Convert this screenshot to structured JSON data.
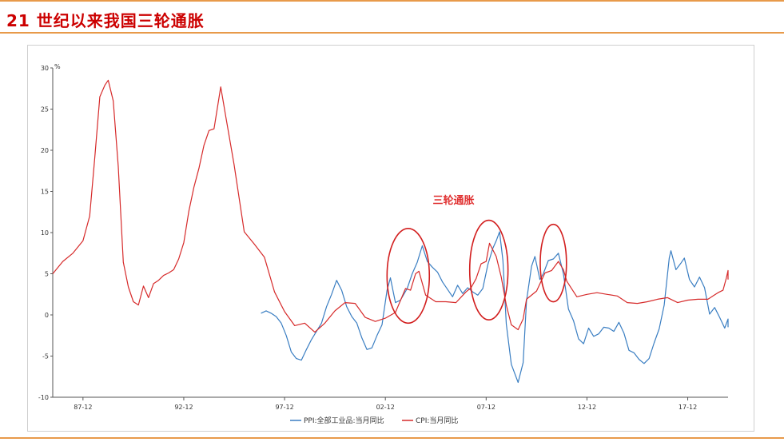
{
  "page": {
    "title": "21 世纪以来我国三轮通胀"
  },
  "colors": {
    "title": "#cc0000",
    "rule": "#e89a4a",
    "ppi": "#3a7ec2",
    "cpi": "#d62a2a",
    "ellipse": "#d21e1e"
  },
  "chart_data": {
    "type": "line",
    "title": "",
    "xlabel": "",
    "ylabel": "%",
    "ylim": [
      -10,
      30
    ],
    "yticks": [
      -10,
      -5,
      0,
      5,
      10,
      15,
      20,
      25,
      30
    ],
    "x_start": "1986-06",
    "x_end": "2019-12",
    "xticks": [
      "87-12",
      "92-12",
      "97-12",
      "02-12",
      "07-12",
      "12-12",
      "17-12"
    ],
    "legend_position": "bottom",
    "grid": false,
    "annotation": {
      "text": "三轮通胀",
      "periods": [
        "2003-2004",
        "2007-2008",
        "2010-2011"
      ]
    },
    "series": [
      {
        "name": "PPI:全部工业品:当月同比",
        "points": [
          [
            "1996-10",
            0.2
          ],
          [
            "1997-01",
            0.5
          ],
          [
            "1997-04",
            0.2
          ],
          [
            "1997-07",
            -0.2
          ],
          [
            "1997-10",
            -1.0
          ],
          [
            "1998-01",
            -2.5
          ],
          [
            "1998-04",
            -4.5
          ],
          [
            "1998-07",
            -5.3
          ],
          [
            "1998-10",
            -5.5
          ],
          [
            "1999-01",
            -4.2
          ],
          [
            "1999-04",
            -3.0
          ],
          [
            "1999-07",
            -2.0
          ],
          [
            "1999-10",
            -1.0
          ],
          [
            "2000-01",
            1.0
          ],
          [
            "2000-04",
            2.5
          ],
          [
            "2000-07",
            4.2
          ],
          [
            "2000-10",
            3.0
          ],
          [
            "2001-01",
            1.0
          ],
          [
            "2001-04",
            -0.2
          ],
          [
            "2001-07",
            -1.0
          ],
          [
            "2001-10",
            -2.8
          ],
          [
            "2002-01",
            -4.2
          ],
          [
            "2002-04",
            -4.0
          ],
          [
            "2002-07",
            -2.5
          ],
          [
            "2002-10",
            -1.2
          ],
          [
            "2003-01",
            3.0
          ],
          [
            "2003-03",
            4.5
          ],
          [
            "2003-06",
            1.5
          ],
          [
            "2003-09",
            1.8
          ],
          [
            "2004-01",
            3.2
          ],
          [
            "2004-04",
            5.0
          ],
          [
            "2004-07",
            6.4
          ],
          [
            "2004-10",
            8.4
          ],
          [
            "2005-01",
            6.5
          ],
          [
            "2005-04",
            5.8
          ],
          [
            "2005-07",
            5.2
          ],
          [
            "2005-10",
            4.0
          ],
          [
            "2006-01",
            3.1
          ],
          [
            "2006-04",
            2.2
          ],
          [
            "2006-07",
            3.6
          ],
          [
            "2006-10",
            2.6
          ],
          [
            "2007-01",
            3.3
          ],
          [
            "2007-04",
            2.8
          ],
          [
            "2007-07",
            2.4
          ],
          [
            "2007-10",
            3.2
          ],
          [
            "2008-01",
            6.1
          ],
          [
            "2008-04",
            8.1
          ],
          [
            "2008-06",
            9.0
          ],
          [
            "2008-08",
            10.1
          ],
          [
            "2008-10",
            6.6
          ],
          [
            "2008-12",
            -1.1
          ],
          [
            "2009-03",
            -6.0
          ],
          [
            "2009-07",
            -8.2
          ],
          [
            "2009-10",
            -5.8
          ],
          [
            "2009-12",
            1.7
          ],
          [
            "2010-03",
            5.9
          ],
          [
            "2010-05",
            7.1
          ],
          [
            "2010-08",
            4.3
          ],
          [
            "2010-10",
            5.0
          ],
          [
            "2011-01",
            6.6
          ],
          [
            "2011-04",
            6.8
          ],
          [
            "2011-07",
            7.5
          ],
          [
            "2011-10",
            5.0
          ],
          [
            "2012-01",
            0.7
          ],
          [
            "2012-04",
            -0.7
          ],
          [
            "2012-07",
            -2.9
          ],
          [
            "2012-10",
            -3.5
          ],
          [
            "2013-01",
            -1.6
          ],
          [
            "2013-04",
            -2.6
          ],
          [
            "2013-07",
            -2.3
          ],
          [
            "2013-10",
            -1.5
          ],
          [
            "2014-01",
            -1.6
          ],
          [
            "2014-04",
            -2.0
          ],
          [
            "2014-07",
            -0.9
          ],
          [
            "2014-10",
            -2.2
          ],
          [
            "2015-01",
            -4.3
          ],
          [
            "2015-04",
            -4.6
          ],
          [
            "2015-07",
            -5.4
          ],
          [
            "2015-10",
            -5.9
          ],
          [
            "2016-01",
            -5.3
          ],
          [
            "2016-04",
            -3.4
          ],
          [
            "2016-07",
            -1.7
          ],
          [
            "2016-10",
            1.2
          ],
          [
            "2017-01",
            6.9
          ],
          [
            "2017-02",
            7.8
          ],
          [
            "2017-05",
            5.5
          ],
          [
            "2017-08",
            6.3
          ],
          [
            "2017-10",
            6.9
          ],
          [
            "2018-01",
            4.3
          ],
          [
            "2018-04",
            3.4
          ],
          [
            "2018-07",
            4.6
          ],
          [
            "2018-10",
            3.3
          ],
          [
            "2019-01",
            0.1
          ],
          [
            "2019-04",
            0.9
          ],
          [
            "2019-07",
            -0.3
          ],
          [
            "2019-10",
            -1.6
          ],
          [
            "2019-12",
            -0.5
          ],
          [
            "2019-12",
            -1.5
          ]
        ]
      },
      {
        "name": "CPI:当月同比",
        "points": [
          [
            "1986-06",
            5.0
          ],
          [
            "1986-12",
            6.5
          ],
          [
            "1987-06",
            7.5
          ],
          [
            "1987-12",
            9.0
          ],
          [
            "1988-04",
            12.0
          ],
          [
            "1988-07",
            19.0
          ],
          [
            "1988-10",
            26.5
          ],
          [
            "1989-01",
            27.9
          ],
          [
            "1989-03",
            28.5
          ],
          [
            "1989-06",
            26.0
          ],
          [
            "1989-09",
            18.0
          ],
          [
            "1989-12",
            6.4
          ],
          [
            "1990-03",
            3.4
          ],
          [
            "1990-06",
            1.6
          ],
          [
            "1990-09",
            1.2
          ],
          [
            "1990-12",
            3.5
          ],
          [
            "1991-03",
            2.1
          ],
          [
            "1991-06",
            3.8
          ],
          [
            "1991-09",
            4.2
          ],
          [
            "1991-12",
            4.8
          ],
          [
            "1992-03",
            5.1
          ],
          [
            "1992-06",
            5.5
          ],
          [
            "1992-09",
            6.8
          ],
          [
            "1992-12",
            8.8
          ],
          [
            "1993-03",
            12.6
          ],
          [
            "1993-06",
            15.5
          ],
          [
            "1993-09",
            17.8
          ],
          [
            "1993-12",
            20.6
          ],
          [
            "1994-03",
            22.4
          ],
          [
            "1994-06",
            22.6
          ],
          [
            "1994-10",
            27.7
          ],
          [
            "1995-01",
            24.1
          ],
          [
            "1995-06",
            18.2
          ],
          [
            "1995-12",
            10.1
          ],
          [
            "1996-06",
            8.6
          ],
          [
            "1996-12",
            7.0
          ],
          [
            "1997-06",
            2.8
          ],
          [
            "1997-12",
            0.4
          ],
          [
            "1998-06",
            -1.3
          ],
          [
            "1998-12",
            -1.0
          ],
          [
            "1999-06",
            -2.1
          ],
          [
            "1999-12",
            -1.0
          ],
          [
            "2000-06",
            0.5
          ],
          [
            "2000-12",
            1.5
          ],
          [
            "2001-06",
            1.4
          ],
          [
            "2001-12",
            -0.3
          ],
          [
            "2002-06",
            -0.8
          ],
          [
            "2002-12",
            -0.4
          ],
          [
            "2003-06",
            0.3
          ],
          [
            "2003-12",
            3.2
          ],
          [
            "2004-03",
            3.0
          ],
          [
            "2004-06",
            5.0
          ],
          [
            "2004-08",
            5.3
          ],
          [
            "2004-12",
            2.4
          ],
          [
            "2005-06",
            1.6
          ],
          [
            "2005-12",
            1.6
          ],
          [
            "2006-06",
            1.5
          ],
          [
            "2006-12",
            2.8
          ],
          [
            "2007-03",
            3.3
          ],
          [
            "2007-06",
            4.4
          ],
          [
            "2007-09",
            6.2
          ],
          [
            "2007-12",
            6.5
          ],
          [
            "2008-02",
            8.7
          ],
          [
            "2008-06",
            7.1
          ],
          [
            "2008-09",
            4.6
          ],
          [
            "2008-12",
            1.2
          ],
          [
            "2009-03",
            -1.2
          ],
          [
            "2009-07",
            -1.8
          ],
          [
            "2009-10",
            -0.5
          ],
          [
            "2009-12",
            1.9
          ],
          [
            "2010-06",
            2.9
          ],
          [
            "2010-11",
            5.1
          ],
          [
            "2011-03",
            5.4
          ],
          [
            "2011-07",
            6.5
          ],
          [
            "2011-10",
            5.5
          ],
          [
            "2011-12",
            4.1
          ],
          [
            "2012-06",
            2.2
          ],
          [
            "2012-12",
            2.5
          ],
          [
            "2013-06",
            2.7
          ],
          [
            "2013-12",
            2.5
          ],
          [
            "2014-06",
            2.3
          ],
          [
            "2014-12",
            1.5
          ],
          [
            "2015-06",
            1.4
          ],
          [
            "2015-12",
            1.6
          ],
          [
            "2016-06",
            1.9
          ],
          [
            "2016-12",
            2.1
          ],
          [
            "2017-06",
            1.5
          ],
          [
            "2017-12",
            1.8
          ],
          [
            "2018-06",
            1.9
          ],
          [
            "2018-12",
            1.9
          ],
          [
            "2019-03",
            2.3
          ],
          [
            "2019-06",
            2.7
          ],
          [
            "2019-09",
            3.0
          ],
          [
            "2019-11",
            4.5
          ],
          [
            "2019-12",
            5.4
          ],
          [
            "2019-12",
            4.3
          ]
        ]
      }
    ]
  }
}
